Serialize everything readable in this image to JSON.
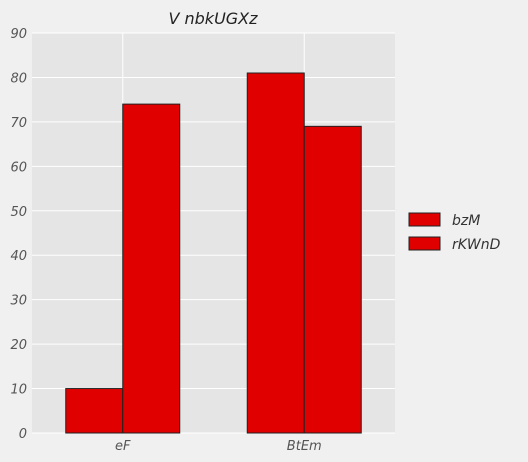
{
  "chart_data": {
    "type": "bar",
    "title": "V  nbkUGXz",
    "xlabel": "",
    "ylabel": "",
    "categories": [
      "eF",
      "BtEm"
    ],
    "series": [
      {
        "name": "bzM",
        "values": [
          10,
          81
        ],
        "color": "#e00000"
      },
      {
        "name": "rKWnD",
        "values": [
          74,
          69
        ],
        "color": "#e00000"
      }
    ],
    "ylim": [
      0,
      90
    ],
    "yticks": [
      0,
      10,
      20,
      30,
      40,
      50,
      60,
      70,
      80,
      90
    ],
    "grid": true,
    "legend_position": "right"
  },
  "colors": {
    "plot_background": "#e5e5e5",
    "figure_background": "#f0f0f0",
    "grid": "#ffffff",
    "bar_edge": "#222222"
  }
}
